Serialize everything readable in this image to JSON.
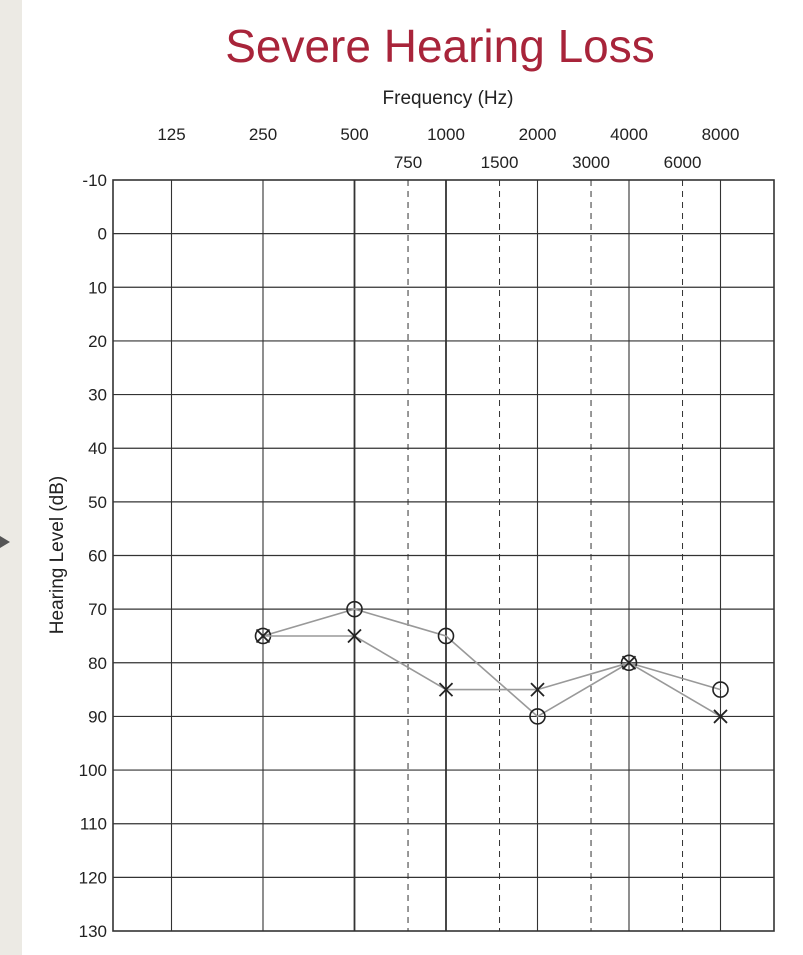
{
  "chart_data": {
    "type": "line",
    "title": "Severe Hearing Loss",
    "xlabel": "Frequency (Hz)",
    "ylabel": "Hearing Level (dB)",
    "ylim": [
      -10,
      130
    ],
    "y_ticks": [
      -10,
      0,
      10,
      20,
      30,
      40,
      50,
      60,
      70,
      80,
      90,
      100,
      110,
      120,
      130
    ],
    "x_octave_ticks": [
      125,
      250,
      500,
      1000,
      2000,
      4000,
      8000
    ],
    "x_interoctave_ticks": [
      750,
      1500,
      3000,
      6000
    ],
    "grid": true,
    "series": [
      {
        "marker": "circle",
        "x": [
          250,
          500,
          1000,
          2000,
          4000,
          8000
        ],
        "values": [
          75,
          70,
          75,
          90,
          80,
          85
        ]
      },
      {
        "marker": "cross",
        "x": [
          250,
          500,
          1000,
          2000,
          4000,
          8000
        ],
        "values": [
          75,
          75,
          85,
          85,
          80,
          90
        ]
      }
    ],
    "colors": {
      "title": "#a8243a",
      "grid": "#333333",
      "line": "#999999",
      "marker": "#222222"
    }
  }
}
